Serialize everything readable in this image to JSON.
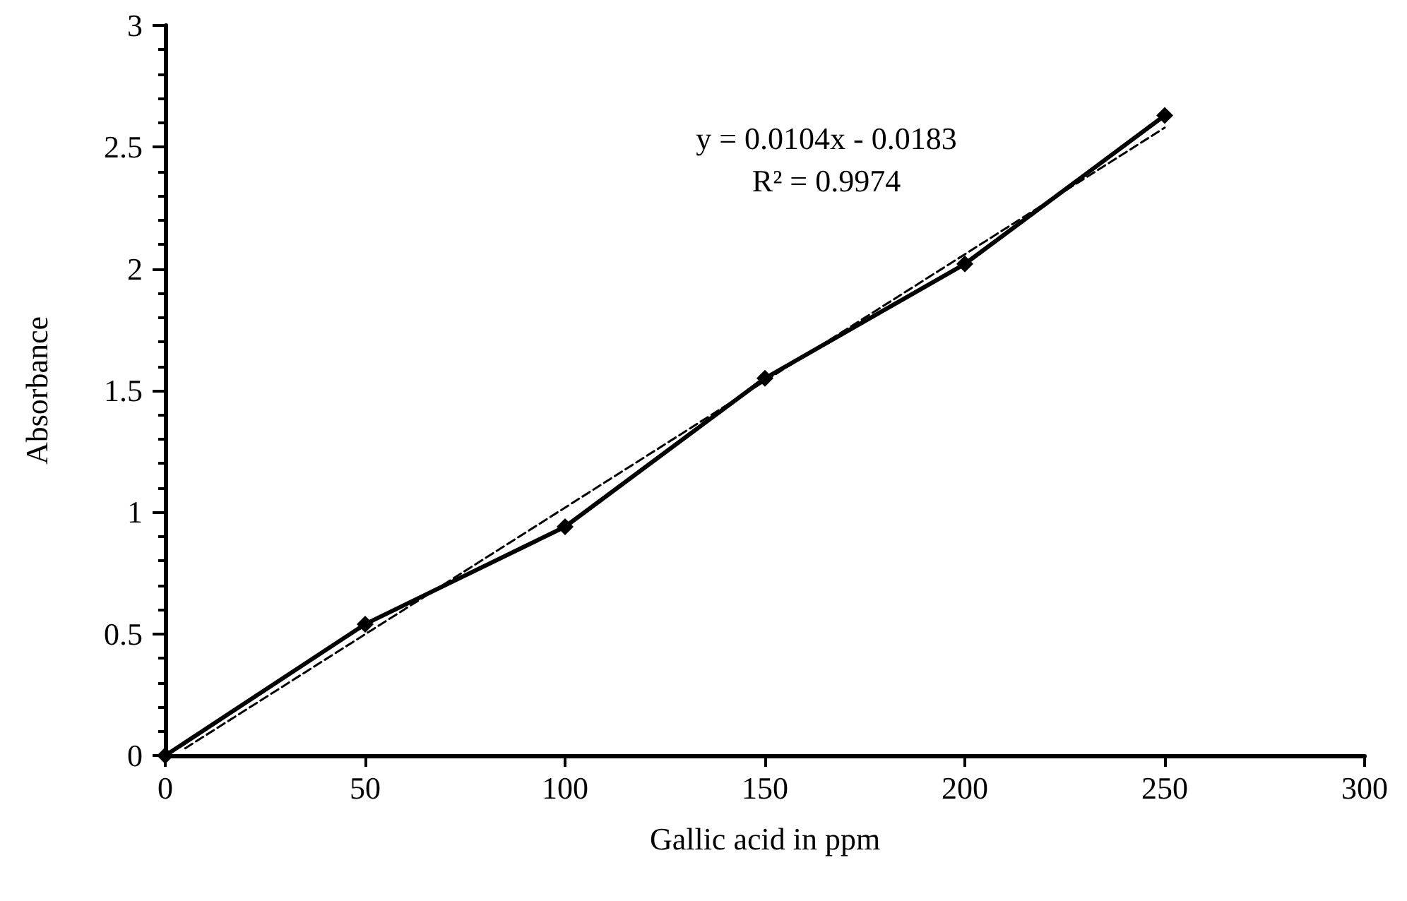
{
  "chart_data": {
    "type": "line",
    "xlabel": "Gallic acid in ppm",
    "ylabel": "Absorbance",
    "annotations": [
      "y = 0.0104x - 0.0183",
      "R² = 0.9974"
    ],
    "series": [
      {
        "color": "#000000",
        "marker": "diamond",
        "line_style": "solid",
        "x": [
          0,
          50,
          100,
          150,
          200,
          250
        ],
        "values": [
          0,
          0.54,
          0.94,
          1.55,
          2.02,
          2.63
        ]
      },
      {
        "color": "#000000",
        "marker": "none",
        "line_style": "dashed",
        "x": [
          5,
          250
        ],
        "values": [
          0.03,
          2.58
        ]
      }
    ],
    "xlim": [
      0,
      300
    ],
    "xticks": [
      0,
      50,
      100,
      150,
      200,
      250,
      300
    ],
    "ylim": [
      0,
      3
    ],
    "yticks": [
      0,
      {
        "value": 0.1,
        "label": null
      },
      {
        "value": 0.2,
        "label": null
      },
      {
        "value": 0.3,
        "label": null
      },
      {
        "value": 0.4,
        "label": null
      },
      0.5,
      {
        "value": 0.6,
        "label": null
      },
      {
        "value": 0.7,
        "label": null
      },
      {
        "value": 0.8,
        "label": null
      },
      {
        "value": 0.9,
        "label": null
      },
      1,
      {
        "value": 1.1,
        "label": null
      },
      {
        "value": 1.2,
        "label": null
      },
      {
        "value": 1.3,
        "label": null
      },
      {
        "value": 1.4,
        "label": null
      },
      1.5,
      {
        "value": 1.6,
        "label": null
      },
      {
        "value": 1.7,
        "label": null
      },
      {
        "value": 1.8,
        "label": null
      },
      {
        "value": 1.9,
        "label": null
      },
      2,
      {
        "value": 2.1,
        "label": null
      },
      {
        "value": 2.2,
        "label": null
      },
      {
        "value": 2.3,
        "label": null
      },
      {
        "value": 2.4,
        "label": null
      },
      2.5,
      {
        "value": 2.6,
        "label": null
      },
      {
        "value": 2.7,
        "label": null
      },
      {
        "value": 2.8,
        "label": null
      },
      {
        "value": 2.9,
        "label": null
      },
      3
    ],
    "grid": false
  }
}
